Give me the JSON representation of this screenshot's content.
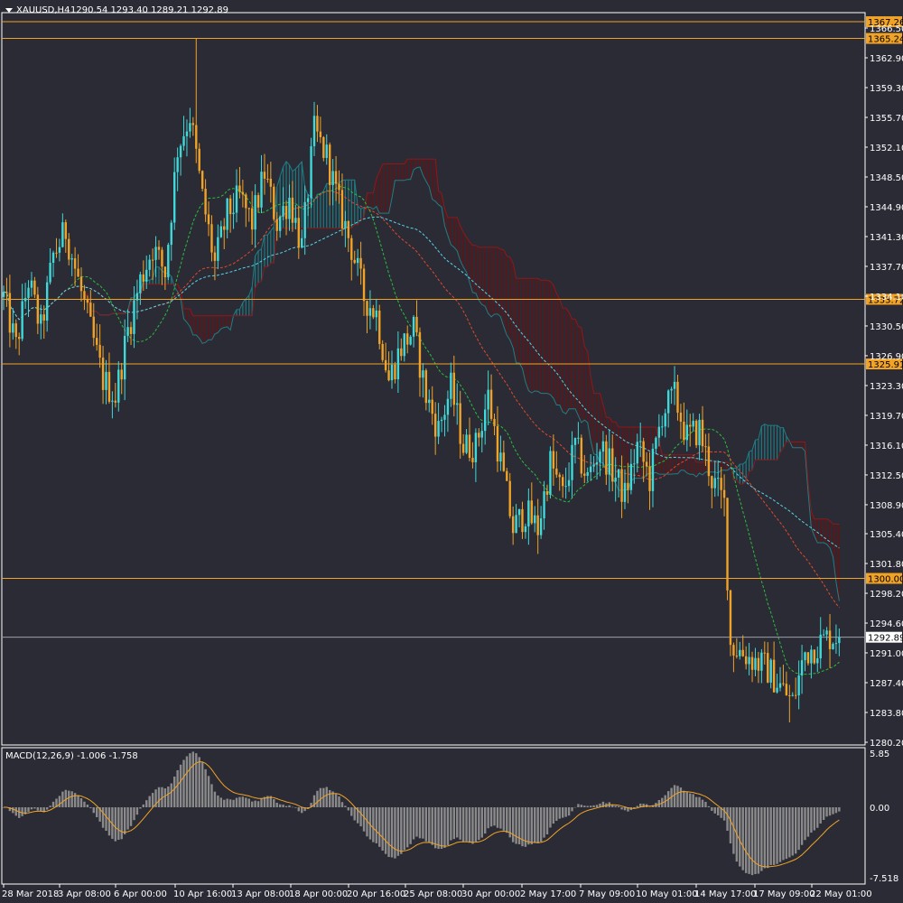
{
  "header": {
    "symbol": "XAUUSD,H4",
    "ohlc": "1290.54 1293.40 1289.21 1292.89"
  },
  "macd_header": "MACD(12,26,9) -1.006 -1.758",
  "colors": {
    "background": "#2b2b36",
    "bull": "#3fd9d9",
    "bear": "#f0a326",
    "level": "#f0a326",
    "current": "#9aa0a8",
    "cloud_bear": "#6b1010",
    "cloud_bull": "#1f7e85",
    "ma_green": "#2bbd3c",
    "ma_red": "#e04a2a",
    "ma_cyan": "#58d4e8",
    "macd_hist": "#8a8a8a",
    "macd_signal": "#f0a326"
  },
  "chart_data": [
    {
      "type": "candlestick",
      "title": "XAUUSD,H4",
      "ylim": [
        1280.2,
        1368.1
      ],
      "y_ticks": [
        "1366.50",
        "1362.90",
        "1359.30",
        "1355.70",
        "1352.10",
        "1348.50",
        "1344.90",
        "1341.30",
        "1337.70",
        "1334.10",
        "1330.50",
        "1326.90",
        "1323.30",
        "1319.70",
        "1316.10",
        "1312.50",
        "1308.90",
        "1305.40",
        "1301.80",
        "1298.20",
        "1294.60",
        "1291.00",
        "1287.40",
        "1283.80",
        "1280.20"
      ],
      "x_ticks": [
        "28 Mar 2018",
        "3 Apr 08:00",
        "6 Apr 00:00",
        "10 Apr 16:00",
        "13 Apr 08:00",
        "18 Apr 00:00",
        "20 Apr 16:00",
        "25 Apr 08:00",
        "30 Apr 00:00",
        "2 May 17:00",
        "7 May 09:00",
        "10 May 01:00",
        "14 May 17:00",
        "17 May 09:00",
        "22 May 01:00"
      ],
      "levels": [
        {
          "value": 1367.26,
          "label": "1367.26"
        },
        {
          "value": 1365.24,
          "label": "1365.24"
        },
        {
          "value": 1333.72,
          "label": "1333.72"
        },
        {
          "value": 1325.91,
          "label": "1325.91"
        },
        {
          "value": 1300.0,
          "label": "1300.00"
        }
      ],
      "current_price": {
        "value": 1292.89,
        "label": "1292.89"
      },
      "price_path": [
        [
          0,
          1334
        ],
        [
          4,
          1328
        ],
        [
          8,
          1336
        ],
        [
          12,
          1330
        ],
        [
          16,
          1339
        ],
        [
          20,
          1342
        ],
        [
          24,
          1336
        ],
        [
          28,
          1330
        ],
        [
          32,
          1324
        ],
        [
          36,
          1322
        ],
        [
          40,
          1330
        ],
        [
          44,
          1336
        ],
        [
          48,
          1340
        ],
        [
          52,
          1337
        ],
        [
          56,
          1352
        ],
        [
          60,
          1356
        ],
        [
          64,
          1346
        ],
        [
          68,
          1338
        ],
        [
          72,
          1344
        ],
        [
          76,
          1346
        ],
        [
          80,
          1343
        ],
        [
          84,
          1349
        ],
        [
          88,
          1343
        ],
        [
          92,
          1346
        ],
        [
          96,
          1340
        ],
        [
          100,
          1354
        ],
        [
          104,
          1351
        ],
        [
          108,
          1345
        ],
        [
          112,
          1340
        ],
        [
          116,
          1334
        ],
        [
          120,
          1332
        ],
        [
          124,
          1324
        ],
        [
          128,
          1328
        ],
        [
          132,
          1330
        ],
        [
          136,
          1322
        ],
        [
          140,
          1318
        ],
        [
          144,
          1323
        ],
        [
          148,
          1316
        ],
        [
          152,
          1316
        ],
        [
          156,
          1322
        ],
        [
          160,
          1314
        ],
        [
          164,
          1306
        ],
        [
          168,
          1308
        ],
        [
          172,
          1306
        ],
        [
          176,
          1314
        ],
        [
          180,
          1310
        ],
        [
          184,
          1316
        ],
        [
          188,
          1312
        ],
        [
          192,
          1316
        ],
        [
          196,
          1313
        ],
        [
          200,
          1310
        ],
        [
          204,
          1316
        ],
        [
          208,
          1312
        ],
        [
          212,
          1320
        ],
        [
          216,
          1322
        ],
        [
          220,
          1317
        ],
        [
          224,
          1318
        ],
        [
          228,
          1312
        ],
        [
          232,
          1309
        ],
        [
          234,
          1292
        ],
        [
          238,
          1291
        ],
        [
          242,
          1290
        ],
        [
          246,
          1289
        ],
        [
          250,
          1287
        ],
        [
          254,
          1285
        ],
        [
          258,
          1291
        ],
        [
          262,
          1292
        ],
        [
          266,
          1293
        ]
      ]
    },
    {
      "type": "macd",
      "title": "MACD(12,26,9) -1.006 -1.758",
      "ylim": [
        -7.518,
        5.85
      ],
      "y_ticks": [
        "5.85",
        "0.00",
        "-7.518"
      ],
      "main": -1.006,
      "signal": -1.758
    }
  ]
}
